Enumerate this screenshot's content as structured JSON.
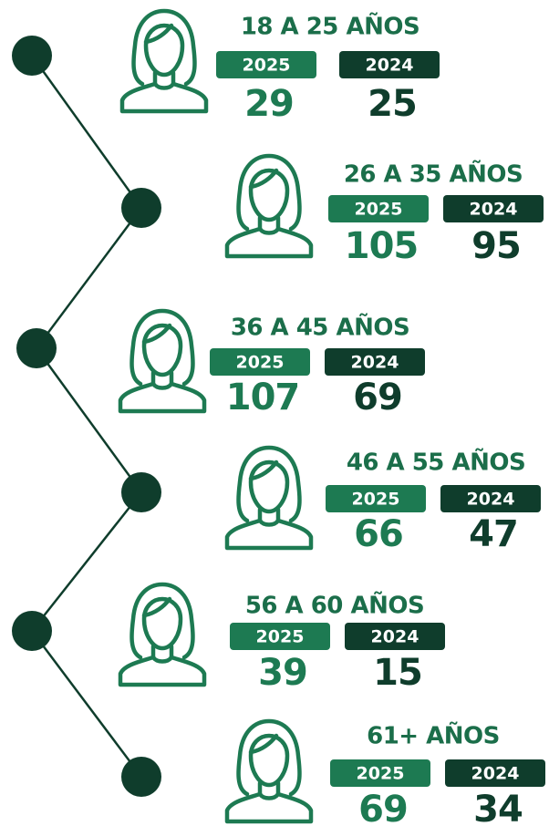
{
  "groups": [
    {
      "label": "18 A 25 AÑOS",
      "items": [
        {
          "year": "2025",
          "value": "29"
        },
        {
          "year": "2024",
          "value": "25"
        }
      ]
    },
    {
      "label": "26 A 35 AÑOS",
      "items": [
        {
          "year": "2025",
          "value": "105"
        },
        {
          "year": "2024",
          "value": "95"
        }
      ]
    },
    {
      "label": "36 A 45 AÑOS",
      "items": [
        {
          "year": "2025",
          "value": "107"
        },
        {
          "year": "2024",
          "value": "69"
        }
      ]
    },
    {
      "label": "46 A 55 AÑOS",
      "items": [
        {
          "year": "2025",
          "value": "66"
        },
        {
          "year": "2024",
          "value": "47"
        }
      ]
    },
    {
      "label": "56 A 60 AÑOS",
      "items": [
        {
          "year": "2025",
          "value": "39"
        },
        {
          "year": "2024",
          "value": "15"
        }
      ]
    },
    {
      "label": "61+ AÑOS",
      "items": [
        {
          "year": "2025",
          "value": "69"
        },
        {
          "year": "2024",
          "value": "34"
        }
      ]
    }
  ]
}
